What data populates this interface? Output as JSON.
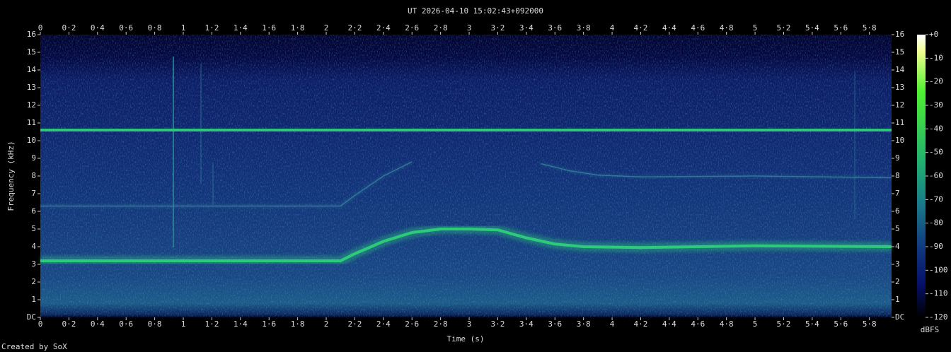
{
  "chart_data": {
    "type": "spectrogram",
    "title": "UT 2026-04-10 15:02:43+092000",
    "x_label": "Time (s)",
    "y_label": "Frequency (kHz)",
    "colorbar_label": "dBFS",
    "footer": "Created by SoX",
    "xlim": [
      0,
      5.955
    ],
    "ylim": [
      0,
      16
    ],
    "xticks": [
      0,
      {
        "value": 0.2,
        "label": "0·2"
      },
      {
        "value": 0.4,
        "label": "0·4"
      },
      {
        "value": 0.6,
        "label": "0·6"
      },
      {
        "value": 0.8,
        "label": "0·8"
      },
      1,
      {
        "value": 1.2,
        "label": "1·2"
      },
      {
        "value": 1.4,
        "label": "1·4"
      },
      {
        "value": 1.6,
        "label": "1·6"
      },
      {
        "value": 1.8,
        "label": "1·8"
      },
      2,
      {
        "value": 2.2,
        "label": "2·2"
      },
      {
        "value": 2.4,
        "label": "2·4"
      },
      {
        "value": 2.6,
        "label": "2·6"
      },
      {
        "value": 2.8,
        "label": "2·8"
      },
      3,
      {
        "value": 3.2,
        "label": "3·2"
      },
      {
        "value": 3.4,
        "label": "3·4"
      },
      {
        "value": 3.6,
        "label": "3·6"
      },
      {
        "value": 3.8,
        "label": "3·8"
      },
      4,
      {
        "value": 4.2,
        "label": "4·2"
      },
      {
        "value": 4.4,
        "label": "4·4"
      },
      {
        "value": 4.6,
        "label": "4·6"
      },
      {
        "value": 4.8,
        "label": "4·8"
      },
      5,
      {
        "value": 5.2,
        "label": "5·2"
      },
      {
        "value": 5.4,
        "label": "5·4"
      },
      {
        "value": 5.6,
        "label": "5·6"
      },
      {
        "value": 5.8,
        "label": "5·8"
      }
    ],
    "yticks": [
      {
        "value": 0,
        "label": "DC"
      },
      1,
      2,
      3,
      4,
      5,
      6,
      7,
      8,
      9,
      10,
      11,
      12,
      13,
      14,
      15,
      16
    ],
    "clim": [
      -120,
      0
    ],
    "cticks": [
      {
        "value": 0,
        "label": "+0"
      },
      -10,
      -20,
      -30,
      -40,
      -50,
      -60,
      -70,
      -80,
      -90,
      -100,
      -110,
      -120
    ],
    "series": [
      {
        "color": "#2fd07a",
        "x": [
          0,
          5.955
        ],
        "values": [
          10.6,
          10.6
        ]
      },
      {
        "color": "#2fd07a",
        "x": [
          0,
          2.1,
          2.2,
          2.4,
          2.6,
          2.8,
          3.0,
          3.2,
          3.4,
          3.6,
          3.8,
          4.2,
          5.0,
          5.955
        ],
        "values": [
          3.2,
          3.2,
          3.6,
          4.3,
          4.8,
          5.0,
          5.0,
          4.95,
          4.5,
          4.15,
          4.0,
          3.95,
          4.05,
          4.0
        ]
      },
      {
        "color": "#3a8fa0",
        "x": [
          0,
          2.1,
          2.2,
          2.4,
          2.6
        ],
        "values": [
          6.3,
          6.3,
          6.9,
          8.0,
          8.8
        ]
      },
      {
        "color": "#3a8fa0",
        "x": [
          3.5,
          3.7,
          3.9,
          4.2,
          5.0,
          5.955
        ],
        "values": [
          8.7,
          8.3,
          8.05,
          7.95,
          8.0,
          7.9
        ]
      }
    ]
  }
}
